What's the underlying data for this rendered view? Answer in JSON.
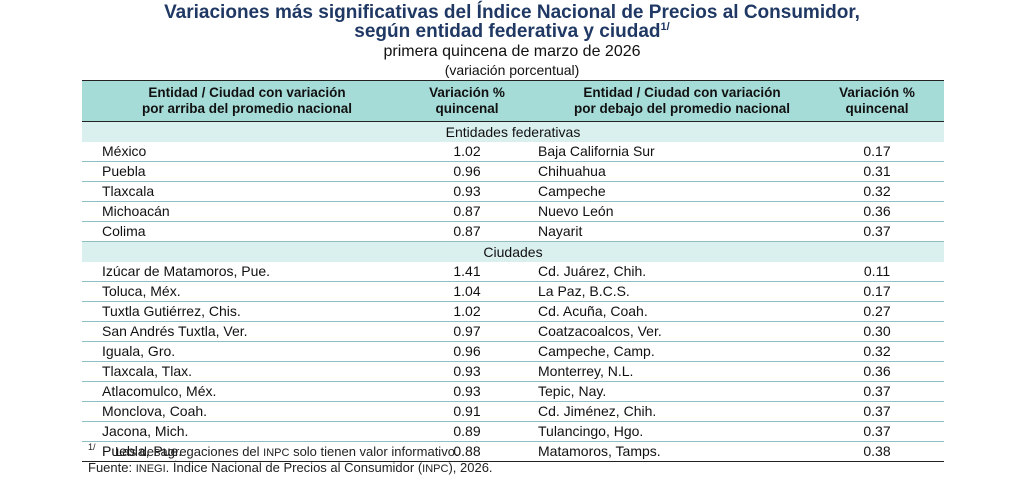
{
  "title": {
    "line1": "Variaciones más significativas del Índice Nacional de Precios al Consumidor,",
    "line2": "según entidad federativa y ciudad",
    "line2_note": "1/",
    "subtitle": "primera quincena de marzo de 2026",
    "unit": "(variación porcentual)"
  },
  "table": {
    "headers": {
      "above_name_1": "Entidad / Ciudad con variación",
      "above_name_2": "por arriba del promedio nacional",
      "above_val_1": "Variación %",
      "above_val_2": "quincenal",
      "below_name_1": "Entidad / Ciudad con variación",
      "below_name_2": "por debajo del promedio nacional",
      "below_val_1": "Variación %",
      "below_val_2": "quincenal"
    },
    "sections": [
      {
        "label": "Entidades federativas",
        "rows": [
          {
            "above": "México",
            "above_val": "1.02",
            "below": "Baja California Sur",
            "below_val": "0.17"
          },
          {
            "above": "Puebla",
            "above_val": "0.96",
            "below": "Chihuahua",
            "below_val": "0.31"
          },
          {
            "above": "Tlaxcala",
            "above_val": "0.93",
            "below": "Campeche",
            "below_val": "0.32"
          },
          {
            "above": "Michoacán",
            "above_val": "0.87",
            "below": "Nuevo León",
            "below_val": "0.36"
          },
          {
            "above": "Colima",
            "above_val": "0.87",
            "below": "Nayarit",
            "below_val": "0.37"
          }
        ]
      },
      {
        "label": "Ciudades",
        "rows": [
          {
            "above": "Izúcar de Matamoros, Pue.",
            "above_val": "1.41",
            "below": "Cd. Juárez, Chih.",
            "below_val": "0.11"
          },
          {
            "above": "Toluca, Méx.",
            "above_val": "1.04",
            "below": "La Paz, B.C.S.",
            "below_val": "0.17"
          },
          {
            "above": "Tuxtla Gutiérrez, Chis.",
            "above_val": "1.02",
            "below": "Cd. Acuña, Coah.",
            "below_val": "0.27"
          },
          {
            "above": "San Andrés Tuxtla, Ver.",
            "above_val": "0.97",
            "below": "Coatzacoalcos, Ver.",
            "below_val": "0.30"
          },
          {
            "above": "Iguala, Gro.",
            "above_val": "0.96",
            "below": "Campeche, Camp.",
            "below_val": "0.32"
          },
          {
            "above": "Tlaxcala, Tlax.",
            "above_val": "0.93",
            "below": "Monterrey, N.L.",
            "below_val": "0.36"
          },
          {
            "above": "Atlacomulco, Méx.",
            "above_val": "0.93",
            "below": "Tepic, Nay.",
            "below_val": "0.37"
          },
          {
            "above": "Monclova, Coah.",
            "above_val": "0.91",
            "below": "Cd. Jiménez, Chih.",
            "below_val": "0.37"
          },
          {
            "above": "Jacona, Mich.",
            "above_val": "0.89",
            "below": "Tulancingo, Hgo.",
            "below_val": "0.37"
          },
          {
            "above": "Puebla, Pue.",
            "above_val": "0.88",
            "below": "Matamoros, Tamps.",
            "below_val": "0.38"
          }
        ]
      }
    ]
  },
  "footnotes": {
    "note_mark": "1/",
    "note_pre": "Las desagregaciones del ",
    "note_abbr": "INPC",
    "note_post": " solo tienen valor informativo.",
    "source_pre": "Fuente: ",
    "source_abbr1": "INEGI",
    "source_mid": ". Índice Nacional de Precios al Consumidor  (",
    "source_abbr2": "INPC",
    "source_post": "), 2026."
  }
}
